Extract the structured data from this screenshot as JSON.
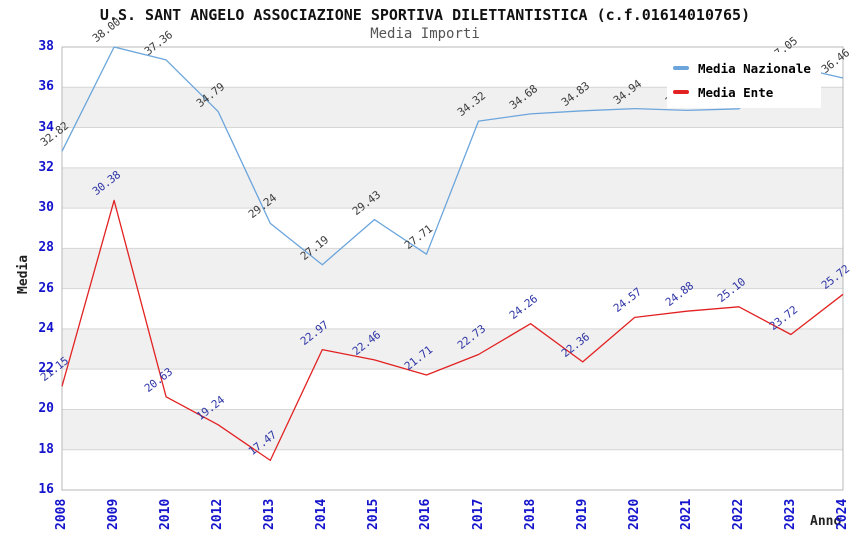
{
  "chart_data": {
    "type": "line",
    "title": "U.S. SANT ANGELO ASSOCIAZIONE SPORTIVA DILETTANTISTICA (c.f.01614010765)",
    "subtitle": "Media Importi",
    "xlabel": "Anno",
    "ylabel": "Media",
    "categories": [
      "2008",
      "2009",
      "2010",
      "2012",
      "2013",
      "2014",
      "2015",
      "2016",
      "2017",
      "2018",
      "2019",
      "2020",
      "2021",
      "2022",
      "2023",
      "2024"
    ],
    "series": [
      {
        "name": "Media Nazionale",
        "color": "#6BA5DC",
        "label_color": "#3c3c3c",
        "values": [
          32.82,
          38.0,
          37.36,
          34.79,
          29.24,
          27.19,
          29.43,
          27.71,
          34.32,
          34.68,
          34.83,
          34.94,
          34.85,
          34.93,
          37.05,
          36.46
        ],
        "labels_hidden_behind_legend_indices": [
          12,
          13
        ]
      },
      {
        "name": "Media Ente",
        "color": "#E22222",
        "label_color": "#2E35A5",
        "values": [
          21.15,
          30.38,
          20.63,
          19.24,
          17.47,
          22.97,
          22.46,
          21.71,
          22.73,
          24.26,
          22.36,
          24.57,
          24.88,
          25.1,
          23.72,
          25.72
        ]
      }
    ],
    "ylim": [
      16,
      38
    ],
    "ytick_step": 2,
    "grid": "horizontal-gridlines-with-alternating-bands",
    "band_color": "#f0f0f0",
    "gridline_color": "#d6d6d6",
    "plot_border_color": "#b9b9b9",
    "axis_tick_color": "#1414cc",
    "legend_position": "top-right"
  },
  "legend": {
    "items": [
      {
        "label": "Media Nazionale"
      },
      {
        "label": "Media Ente"
      }
    ]
  }
}
